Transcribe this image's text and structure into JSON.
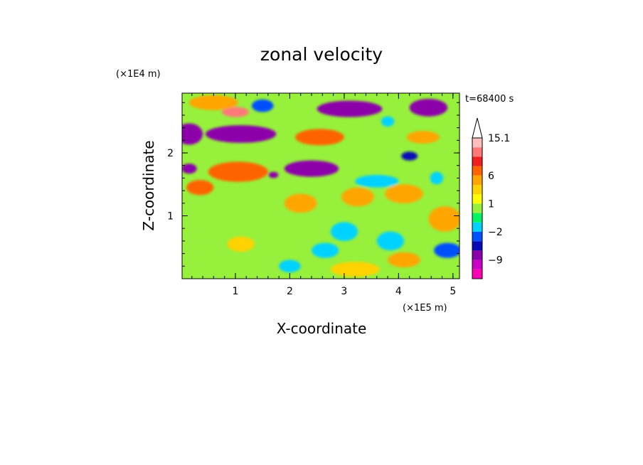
{
  "chart_data": {
    "type": "heatmap",
    "title": "zonal velocity",
    "xlabel": "X-coordinate",
    "ylabel": "Z-coordinate",
    "x_multiplier_label": "(×1E5 m)",
    "y_multiplier_label": "(×1E4 m)",
    "time_label": "t=68400 s",
    "xlim": [
      0.02,
      5.12
    ],
    "ylim": [
      0,
      2.95
    ],
    "x_ticks": [
      "1",
      "2",
      "3",
      "4",
      "5"
    ],
    "y_ticks": [
      "1",
      "2"
    ],
    "colorbar": {
      "levels": [
        -15,
        -12,
        -9,
        -6,
        -3,
        -2,
        -1,
        0,
        1,
        2,
        3,
        6,
        9,
        12,
        15.1
      ],
      "colors": [
        "#ff00b4",
        "#c800c8",
        "#8c00aa",
        "#0a0ab4",
        "#0050ff",
        "#00d2ff",
        "#00f564",
        "#96f03c",
        "#ffff00",
        "#ffd200",
        "#ffa500",
        "#ff6400",
        "#f01e1e",
        "#ff7878",
        "#ffbebe"
      ],
      "labels": [
        "15.1",
        "6",
        "1",
        "−2",
        "−9"
      ],
      "label_values": [
        15.1,
        6,
        1,
        -2,
        -9
      ],
      "extend": "max"
    },
    "field_features": [
      {
        "x": 1.1,
        "z": 2.3,
        "rx": 0.65,
        "rz": 0.14,
        "u": -9
      },
      {
        "x": 2.4,
        "z": 1.75,
        "rx": 0.5,
        "rz": 0.13,
        "u": -9
      },
      {
        "x": 3.1,
        "z": 2.7,
        "rx": 0.6,
        "rz": 0.13,
        "u": -9
      },
      {
        "x": 4.55,
        "z": 2.72,
        "rx": 0.35,
        "rz": 0.14,
        "u": -9
      },
      {
        "x": 0.15,
        "z": 2.3,
        "rx": 0.25,
        "rz": 0.17,
        "u": -7
      },
      {
        "x": 0.15,
        "z": 1.75,
        "rx": 0.14,
        "rz": 0.08,
        "u": -7
      },
      {
        "x": 1.7,
        "z": 1.65,
        "rx": 0.09,
        "rz": 0.05,
        "u": -7
      },
      {
        "x": 4.2,
        "z": 1.95,
        "rx": 0.15,
        "rz": 0.07,
        "u": -5
      },
      {
        "x": 1.0,
        "z": 2.65,
        "rx": 0.25,
        "rz": 0.08,
        "u": 12
      },
      {
        "x": 1.05,
        "z": 1.7,
        "rx": 0.55,
        "rz": 0.16,
        "u": 7
      },
      {
        "x": 2.55,
        "z": 2.25,
        "rx": 0.45,
        "rz": 0.13,
        "u": 7
      },
      {
        "x": 0.35,
        "z": 1.45,
        "rx": 0.25,
        "rz": 0.12,
        "u": 6
      },
      {
        "x": 0.6,
        "z": 2.8,
        "rx": 0.45,
        "rz": 0.12,
        "u": 5
      },
      {
        "x": 4.45,
        "z": 2.25,
        "rx": 0.3,
        "rz": 0.1,
        "u": 5
      },
      {
        "x": 2.2,
        "z": 1.2,
        "rx": 0.3,
        "rz": 0.15,
        "u": 3.5
      },
      {
        "x": 3.25,
        "z": 1.3,
        "rx": 0.3,
        "rz": 0.15,
        "u": 3.5
      },
      {
        "x": 4.1,
        "z": 1.35,
        "rx": 0.35,
        "rz": 0.15,
        "u": 3.5
      },
      {
        "x": 4.85,
        "z": 0.95,
        "rx": 0.3,
        "rz": 0.2,
        "u": 3
      },
      {
        "x": 3.2,
        "z": 0.15,
        "rx": 0.45,
        "rz": 0.12,
        "u": 2.5
      },
      {
        "x": 4.1,
        "z": 0.3,
        "rx": 0.3,
        "rz": 0.12,
        "u": 3.5
      },
      {
        "x": 1.1,
        "z": 0.55,
        "rx": 0.25,
        "rz": 0.12,
        "u": 2
      },
      {
        "x": 3.0,
        "z": 0.75,
        "rx": 0.25,
        "rz": 0.15,
        "u": -2
      },
      {
        "x": 2.65,
        "z": 0.45,
        "rx": 0.25,
        "rz": 0.12,
        "u": -2
      },
      {
        "x": 3.85,
        "z": 0.6,
        "rx": 0.25,
        "rz": 0.15,
        "u": -2
      },
      {
        "x": 3.6,
        "z": 1.55,
        "rx": 0.4,
        "rz": 0.1,
        "u": -2
      },
      {
        "x": 4.9,
        "z": 0.45,
        "rx": 0.25,
        "rz": 0.12,
        "u": -3
      },
      {
        "x": 4.7,
        "z": 1.6,
        "rx": 0.12,
        "rz": 0.1,
        "u": -2
      },
      {
        "x": 2.0,
        "z": 0.2,
        "rx": 0.2,
        "rz": 0.1,
        "u": -1.5
      },
      {
        "x": 1.5,
        "z": 2.75,
        "rx": 0.2,
        "rz": 0.1,
        "u": -3
      },
      {
        "x": 3.8,
        "z": 2.5,
        "rx": 0.12,
        "rz": 0.08,
        "u": -2
      }
    ]
  },
  "colors": {
    "background": "#ffffff",
    "frame": "#000000",
    "base_field": "#96f03c"
  }
}
